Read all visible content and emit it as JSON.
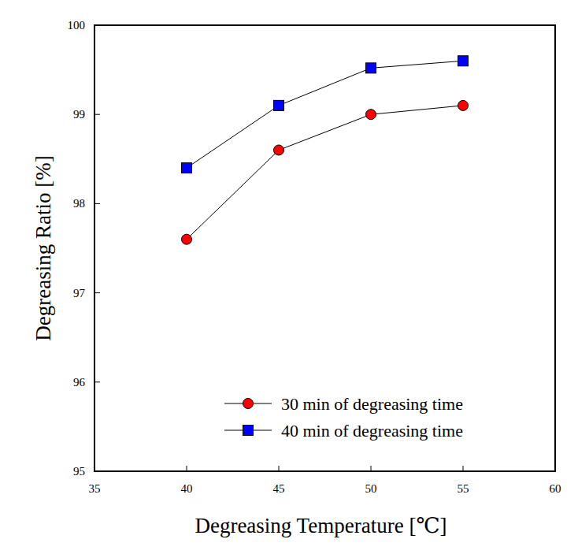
{
  "chart_data": {
    "type": "line",
    "x_label": "Degreasing Temperature [℃]",
    "y_label": "Degreasing Ratio [%]",
    "x": [
      40,
      45,
      50,
      55
    ],
    "series": [
      {
        "name": "30 min of degreasing time",
        "color": "#ff0000",
        "marker": "circle",
        "line_style": "solid",
        "values": [
          97.6,
          98.6,
          99.0,
          99.1
        ]
      },
      {
        "name": "40 min of degreasing time",
        "color": "#0000ff",
        "marker": "square",
        "line_style": "solid",
        "values": [
          98.4,
          99.1,
          99.52,
          99.6
        ]
      }
    ],
    "xlim": [
      35,
      60
    ],
    "xticks": [
      35,
      40,
      45,
      50,
      55,
      60
    ],
    "ylim": [
      95,
      100
    ],
    "yticks": [
      95,
      96,
      97,
      98,
      99,
      100
    ],
    "grid": false,
    "legend": "lower right"
  }
}
